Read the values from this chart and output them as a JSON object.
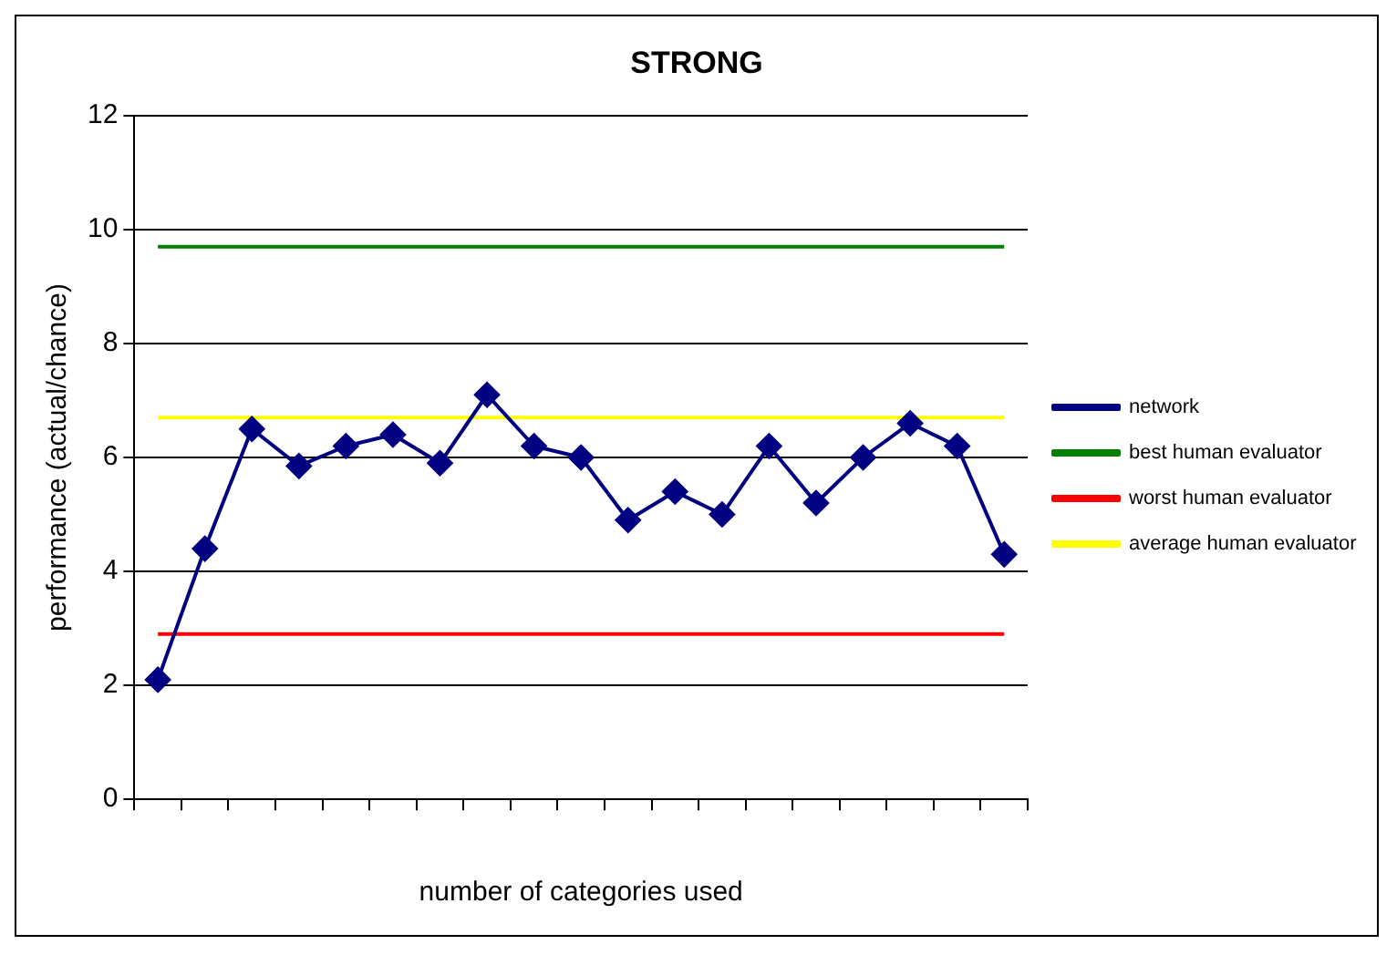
{
  "chart_data": {
    "type": "line",
    "title": "STRONG",
    "xlabel": "number of categories used",
    "ylabel": "performance (actual/chance)",
    "categories": [
      null,
      null,
      null,
      null,
      null,
      null,
      null,
      null,
      null,
      null,
      null,
      null,
      null,
      null,
      null,
      null,
      null,
      null,
      null
    ],
    "series": [
      {
        "name": "network",
        "color": "#000080",
        "marker": "diamond",
        "values": [
          2.1,
          4.4,
          6.5,
          5.85,
          6.2,
          6.4,
          5.9,
          7.1,
          6.2,
          6.0,
          4.9,
          5.4,
          5.0,
          6.2,
          5.2,
          6.0,
          6.6,
          6.2,
          4.3
        ]
      },
      {
        "name": "best human evaluator",
        "color": "#008000",
        "marker": "none",
        "values": [
          9.7,
          9.7,
          9.7,
          9.7,
          9.7,
          9.7,
          9.7,
          9.7,
          9.7,
          9.7,
          9.7,
          9.7,
          9.7,
          9.7,
          9.7,
          9.7,
          9.7,
          9.7,
          9.7
        ]
      },
      {
        "name": "worst human evaluator",
        "color": "#ff0000",
        "marker": "none",
        "values": [
          2.9,
          2.9,
          2.9,
          2.9,
          2.9,
          2.9,
          2.9,
          2.9,
          2.9,
          2.9,
          2.9,
          2.9,
          2.9,
          2.9,
          2.9,
          2.9,
          2.9,
          2.9,
          2.9
        ]
      },
      {
        "name": "average human evaluator",
        "color": "#ffff00",
        "marker": "none",
        "values": [
          6.7,
          6.7,
          6.7,
          6.7,
          6.7,
          6.7,
          6.7,
          6.7,
          6.7,
          6.7,
          6.7,
          6.7,
          6.7,
          6.7,
          6.7,
          6.7,
          6.7,
          6.7,
          6.7
        ]
      }
    ],
    "ylim": [
      0,
      12
    ],
    "yticks": [
      0,
      2,
      4,
      6,
      8,
      10,
      12
    ],
    "grid": "y",
    "legend": "right"
  }
}
